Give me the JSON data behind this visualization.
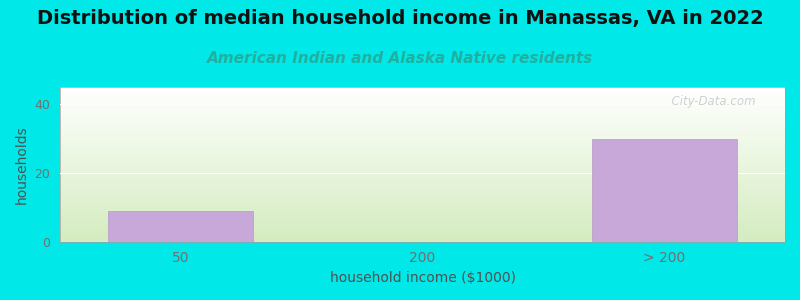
{
  "title": "Distribution of median household income in Manassas, VA in 2022",
  "subtitle": "American Indian and Alaska Native residents",
  "xlabel": "household income ($1000)",
  "ylabel": "households",
  "categories": [
    "50",
    "200",
    "> 200"
  ],
  "values": [
    9,
    0,
    30
  ],
  "bar_color": "#c8a8d8",
  "bar_edge_color": "#b898c8",
  "background_color": "#00e8e8",
  "plot_bg_bottom": "#d4ecc0",
  "plot_bg_top": "#ffffff",
  "ylim": [
    0,
    45
  ],
  "yticks": [
    0,
    20,
    40
  ],
  "title_fontsize": 14,
  "subtitle_fontsize": 11,
  "subtitle_color": "#20b0a0",
  "axis_label_color": "#505050",
  "tick_color": "#707070",
  "watermark": "  City-Data.com",
  "watermark_color": "#c8c8c8",
  "grid_color": "#ffffff"
}
